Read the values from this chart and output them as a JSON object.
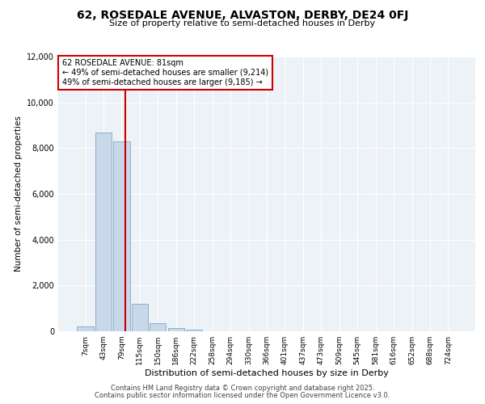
{
  "title1": "62, ROSEDALE AVENUE, ALVASTON, DERBY, DE24 0FJ",
  "title2": "Size of property relative to semi-detached houses in Derby",
  "xlabel": "Distribution of semi-detached houses by size in Derby",
  "ylabel": "Number of semi-detached properties",
  "annotation_title": "62 ROSEDALE AVENUE: 81sqm",
  "annotation_line1": "← 49% of semi-detached houses are smaller (9,214)",
  "annotation_line2": "49% of semi-detached houses are larger (9,185) →",
  "ylim": [
    0,
    12000
  ],
  "bar_color": "#c8d8e8",
  "bar_edge_color": "#8ab0cc",
  "red_line_color": "#cc0000",
  "annotation_box_edge_color": "#cc0000",
  "background_color": "#edf2f7",
  "grid_color": "#ffffff",
  "categories": [
    "7sqm",
    "43sqm",
    "79sqm",
    "115sqm",
    "150sqm",
    "186sqm",
    "222sqm",
    "258sqm",
    "294sqm",
    "330sqm",
    "366sqm",
    "401sqm",
    "437sqm",
    "473sqm",
    "509sqm",
    "545sqm",
    "581sqm",
    "616sqm",
    "652sqm",
    "688sqm",
    "724sqm"
  ],
  "values": [
    200,
    8680,
    8280,
    1200,
    350,
    130,
    70,
    5,
    2,
    1,
    0,
    0,
    0,
    0,
    0,
    0,
    0,
    0,
    0,
    0,
    0
  ],
  "red_line_x": 2.22,
  "footer1": "Contains HM Land Registry data © Crown copyright and database right 2025.",
  "footer2": "Contains public sector information licensed under the Open Government Licence v3.0."
}
